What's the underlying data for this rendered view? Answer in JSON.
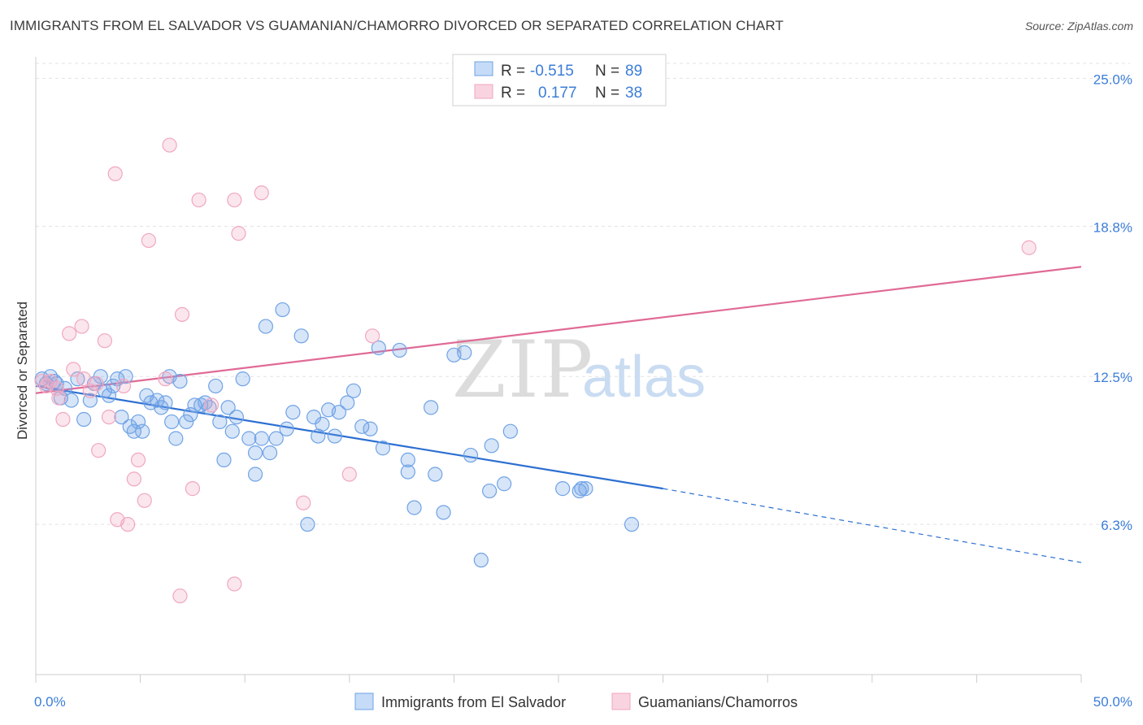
{
  "header": {
    "title": "IMMIGRANTS FROM EL SALVADOR VS GUAMANIAN/CHAMORRO DIVORCED OR SEPARATED CORRELATION CHART",
    "source": "Source: ZipAtlas.com"
  },
  "watermark": {
    "zip": "ZIP",
    "atlas": "atlas"
  },
  "stats": [
    {
      "r_label": "R =",
      "r_value": "-0.515",
      "n_label": "N =",
      "n_value": "89"
    },
    {
      "r_label": "R =",
      "r_value": "0.177",
      "n_label": "N =",
      "n_value": "38"
    }
  ],
  "chart_data": {
    "type": "scatter",
    "title": "IMMIGRANTS FROM EL SALVADOR VS GUAMANIAN/CHAMORRO DIVORCED OR SEPARATED CORRELATION CHART",
    "xlabel": "",
    "ylabel": "Divorced or Separated",
    "xlim": [
      0,
      50
    ],
    "ylim": [
      0,
      25.9
    ],
    "x_tick_labels": [
      "0.0%",
      "50.0%"
    ],
    "y_ticks": [
      6.3,
      12.5,
      18.8,
      25.0
    ],
    "y_tick_labels": [
      "6.3%",
      "12.5%",
      "18.8%",
      "25.0%"
    ],
    "grid": true,
    "legend_position": "bottom-center",
    "series": [
      {
        "name": "Immigrants from El Salvador",
        "color": "#6fa3e6",
        "trend_color": "#2c6fd1",
        "trend": {
          "x0": 0,
          "y0": 12.1,
          "x1": 30,
          "y1": 7.8,
          "dashed_to_x": 50,
          "dashed_to_y": 4.7
        },
        "points": [
          [
            0.3,
            12.4
          ],
          [
            0.5,
            12.2
          ],
          [
            0.7,
            12.5
          ],
          [
            0.9,
            12.3
          ],
          [
            1.0,
            12.2
          ],
          [
            1.2,
            11.6
          ],
          [
            1.4,
            12.0
          ],
          [
            1.7,
            11.5
          ],
          [
            2.0,
            12.4
          ],
          [
            2.3,
            10.7
          ],
          [
            2.6,
            11.5
          ],
          [
            2.8,
            12.2
          ],
          [
            3.1,
            12.5
          ],
          [
            3.3,
            11.9
          ],
          [
            3.5,
            11.7
          ],
          [
            3.7,
            12.1
          ],
          [
            3.9,
            12.4
          ],
          [
            4.1,
            10.8
          ],
          [
            4.3,
            12.5
          ],
          [
            4.5,
            10.4
          ],
          [
            4.7,
            10.2
          ],
          [
            4.9,
            10.6
          ],
          [
            5.1,
            10.2
          ],
          [
            5.3,
            11.7
          ],
          [
            5.5,
            11.4
          ],
          [
            5.8,
            11.5
          ],
          [
            6.0,
            11.2
          ],
          [
            6.2,
            11.4
          ],
          [
            6.4,
            12.5
          ],
          [
            6.5,
            10.6
          ],
          [
            6.7,
            9.9
          ],
          [
            6.9,
            12.3
          ],
          [
            7.2,
            10.6
          ],
          [
            7.4,
            10.9
          ],
          [
            7.6,
            11.3
          ],
          [
            7.9,
            11.3
          ],
          [
            8.1,
            11.4
          ],
          [
            8.3,
            11.2
          ],
          [
            8.6,
            12.1
          ],
          [
            8.8,
            10.6
          ],
          [
            9.0,
            9.0
          ],
          [
            9.2,
            11.2
          ],
          [
            9.4,
            10.2
          ],
          [
            9.6,
            10.8
          ],
          [
            9.9,
            12.4
          ],
          [
            10.2,
            9.9
          ],
          [
            10.5,
            8.4
          ],
          [
            10.5,
            9.3
          ],
          [
            10.8,
            9.9
          ],
          [
            11.2,
            9.3
          ],
          [
            11.5,
            9.9
          ],
          [
            11.8,
            15.3
          ],
          [
            12.0,
            10.3
          ],
          [
            12.3,
            11.0
          ],
          [
            12.7,
            14.2
          ],
          [
            13.0,
            6.3
          ],
          [
            13.3,
            10.8
          ],
          [
            13.5,
            10.0
          ],
          [
            13.7,
            10.5
          ],
          [
            14.0,
            11.1
          ],
          [
            14.3,
            10.0
          ],
          [
            14.5,
            11.0
          ],
          [
            14.9,
            11.4
          ],
          [
            15.2,
            11.9
          ],
          [
            15.6,
            10.4
          ],
          [
            16.0,
            10.3
          ],
          [
            16.6,
            9.5
          ],
          [
            16.4,
            13.7
          ],
          [
            17.4,
            13.6
          ],
          [
            17.8,
            9.0
          ],
          [
            17.8,
            8.5
          ],
          [
            18.1,
            7.0
          ],
          [
            18.9,
            11.2
          ],
          [
            19.1,
            8.4
          ],
          [
            19.5,
            6.8
          ],
          [
            20.0,
            13.4
          ],
          [
            20.5,
            13.5
          ],
          [
            20.8,
            9.2
          ],
          [
            21.3,
            4.8
          ],
          [
            21.7,
            7.7
          ],
          [
            21.8,
            9.6
          ],
          [
            22.4,
            8.0
          ],
          [
            22.7,
            10.2
          ],
          [
            25.2,
            7.8
          ],
          [
            26.0,
            7.7
          ],
          [
            26.1,
            7.8
          ],
          [
            26.3,
            7.8
          ],
          [
            28.5,
            6.3
          ],
          [
            11.0,
            14.6
          ]
        ]
      },
      {
        "name": "Guamanians/Chamorros",
        "color": "#f0a7c0",
        "trend_color": "#e06a96",
        "trend": {
          "x0": 0,
          "y0": 11.8,
          "x1": 50,
          "y1": 17.1
        },
        "points": [
          [
            0.3,
            12.3
          ],
          [
            0.7,
            12.3
          ],
          [
            1.1,
            11.6
          ],
          [
            1.3,
            10.7
          ],
          [
            1.6,
            14.3
          ],
          [
            1.8,
            12.8
          ],
          [
            2.2,
            14.6
          ],
          [
            2.6,
            11.9
          ],
          [
            3.0,
            9.4
          ],
          [
            3.3,
            14.0
          ],
          [
            3.5,
            10.8
          ],
          [
            3.8,
            21.0
          ],
          [
            3.9,
            6.5
          ],
          [
            4.4,
            6.3
          ],
          [
            4.7,
            8.2
          ],
          [
            4.9,
            9.0
          ],
          [
            5.2,
            7.3
          ],
          [
            5.4,
            18.2
          ],
          [
            6.2,
            12.4
          ],
          [
            6.4,
            22.2
          ],
          [
            6.9,
            3.3
          ],
          [
            7.0,
            15.1
          ],
          [
            7.5,
            7.8
          ],
          [
            7.8,
            19.9
          ],
          [
            8.4,
            11.3
          ],
          [
            9.5,
            3.8
          ],
          [
            9.5,
            19.9
          ],
          [
            9.7,
            18.5
          ],
          [
            10.8,
            20.2
          ],
          [
            12.8,
            7.2
          ],
          [
            15.0,
            8.4
          ],
          [
            16.1,
            14.2
          ],
          [
            47.5,
            17.9
          ],
          [
            2.3,
            12.4
          ],
          [
            0.5,
            12.1
          ],
          [
            1.0,
            12.0
          ],
          [
            2.9,
            12.2
          ],
          [
            4.2,
            12.1
          ]
        ]
      }
    ]
  }
}
